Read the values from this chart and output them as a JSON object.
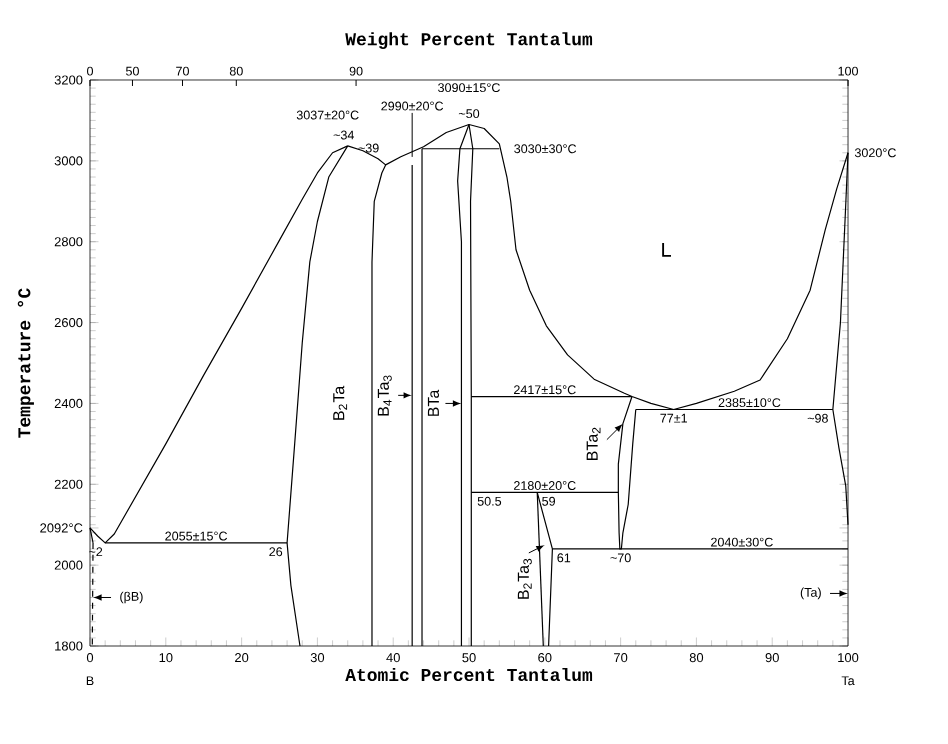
{
  "chart_data": {
    "type": "line",
    "xlabel": "Atomic Percent Tantalum",
    "ylabel": "Temperature °C",
    "x2label": "Weight Percent Tantalum",
    "xlim": [
      0,
      100
    ],
    "xticks": [
      0,
      10,
      20,
      30,
      40,
      50,
      60,
      70,
      80,
      90,
      100
    ],
    "ylim": [
      1800,
      3200
    ],
    "yticks": [
      1800,
      2000,
      {
        "value": 2092,
        "label": "2092°C"
      },
      2200,
      2400,
      2600,
      2800,
      3000,
      3200
    ],
    "marker": "none",
    "line_style": "solid",
    "series": [
      {
        "color": "#000000",
        "x": [
          0,
          1,
          2,
          3.2,
          10,
          15,
          20,
          25,
          28,
          30,
          32,
          34
        ],
        "values": [
          2092,
          2072,
          2055,
          2077,
          2300,
          2470,
          2635,
          2804,
          2905,
          2970,
          3020,
          3037
        ]
      },
      {
        "color": "#000000",
        "x": [
          34,
          36,
          38,
          39,
          41,
          44,
          47,
          50
        ],
        "values": [
          3037,
          3025,
          3005,
          2990,
          3010,
          3035,
          3070,
          3090
        ]
      },
      {
        "color": "#000000",
        "x": [
          50,
          52,
          54,
          55,
          55.5,
          56.2,
          58,
          60.2,
          63,
          66.5,
          70.5,
          71.5,
          74,
          77
        ],
        "values": [
          3090,
          3080,
          3042,
          2960,
          2900,
          2780,
          2680,
          2592,
          2520,
          2460,
          2425,
          2417,
          2400,
          2385
        ]
      },
      {
        "color": "#000000",
        "x": [
          77,
          80,
          85,
          88.4,
          92,
          95,
          97,
          98.5,
          100
        ],
        "values": [
          2385,
          2400,
          2430,
          2458,
          2560,
          2680,
          2830,
          2930,
          3020
        ]
      },
      {
        "color": "#000000",
        "x": [
          100,
          99.7,
          98.8,
          98,
          99,
          99.6,
          100
        ],
        "values": [
          2100,
          2196,
          2290,
          2385,
          2600,
          2850,
          3020
        ]
      },
      {
        "color": "#000000",
        "x": [
          0,
          0.4
        ],
        "values": [
          2092,
          2055
        ]
      },
      {
        "color": "#000000",
        "line_style": "dashed",
        "x": [
          0.4,
          0.3
        ],
        "values": [
          2055,
          1800
        ]
      },
      {
        "color": "#000000",
        "x": [
          27.7,
          26.5,
          26,
          27,
          28,
          29,
          30,
          31.5,
          34
        ],
        "values": [
          1800,
          1950,
          2055,
          2300,
          2550,
          2750,
          2850,
          2960,
          3037
        ]
      },
      {
        "color": "#000000",
        "x": [
          37.2,
          37.2,
          37.5,
          38.5,
          39
        ],
        "values": [
          1800,
          2750,
          2900,
          2970,
          2990
        ]
      },
      {
        "color": "#000000",
        "x": [
          42.5,
          42.5
        ],
        "values": [
          1800,
          2990
        ]
      },
      {
        "color": "#000000",
        "x": [
          43.8,
          43.8
        ],
        "values": [
          1800,
          3030
        ]
      },
      {
        "color": "#000000",
        "x": [
          49,
          49,
          48.5,
          48.8,
          50
        ],
        "values": [
          1800,
          2800,
          2950,
          3030,
          3090
        ]
      },
      {
        "color": "#000000",
        "x": [
          50.3,
          50.3,
          50.2,
          50.5,
          50
        ],
        "values": [
          1800,
          2417,
          2900,
          3030,
          3090
        ]
      },
      {
        "color": "#000000",
        "x": [
          59,
          59.8
        ],
        "values": [
          2180,
          1800
        ]
      },
      {
        "color": "#000000",
        "x": [
          59,
          61,
          60.5
        ],
        "values": [
          2180,
          2040,
          1800
        ]
      },
      {
        "color": "#000000",
        "x": [
          71.5,
          70.3,
          69.7,
          69.7,
          69.8,
          69.9,
          70.1,
          70.3,
          71,
          71.6,
          72
        ],
        "values": [
          2417,
          2350,
          2250,
          2180,
          2080,
          2040,
          2040,
          2080,
          2150,
          2300,
          2385
        ]
      },
      {
        "color": "#000000",
        "x": [
          2,
          26
        ],
        "values": [
          2055,
          2055
        ]
      },
      {
        "color": "#000000",
        "x": [
          50.3,
          71.5
        ],
        "values": [
          2417,
          2417
        ]
      },
      {
        "color": "#000000",
        "x": [
          72,
          98
        ],
        "values": [
          2385,
          2385
        ]
      },
      {
        "color": "#000000",
        "x": [
          50.3,
          69.7
        ],
        "values": [
          2180,
          2180
        ]
      },
      {
        "color": "#000000",
        "x": [
          61,
          100
        ],
        "values": [
          2040,
          2040
        ]
      },
      {
        "color": "#000000",
        "x": [
          43.8,
          54
        ],
        "values": [
          3030,
          3030
        ]
      }
    ],
    "annotations": [
      "L",
      {
        "text": "3037±20°C",
        "x": 34,
        "y": 3037
      },
      {
        "text": "~34",
        "x": 34,
        "y": 3037
      },
      {
        "text": "2990±20°C",
        "x": 42.5,
        "y": 2990
      },
      {
        "text": "~39",
        "x": 39,
        "y": 2990
      },
      {
        "text": "3090±15°C",
        "x": 50,
        "y": 3090
      },
      {
        "text": "~50",
        "x": 50,
        "y": 3090
      },
      {
        "text": "3030±30°C",
        "x": 54,
        "y": 3030
      },
      {
        "text": "3020°C",
        "x": 100,
        "y": 3020
      },
      {
        "text": "~2",
        "x": 2,
        "y": 2055
      },
      {
        "text": "2055±15°C",
        "x": 14,
        "y": 2055
      },
      {
        "text": "26",
        "x": 26,
        "y": 2055
      },
      {
        "text": "2417±15°C",
        "x": 60,
        "y": 2417
      },
      {
        "text": "2385±10°C",
        "x": 87,
        "y": 2385
      },
      {
        "text": "77±1",
        "x": 77,
        "y": 2385
      },
      {
        "text": "~98",
        "x": 98,
        "y": 2385
      },
      {
        "text": "2180±20°C",
        "x": 60,
        "y": 2180
      },
      {
        "text": "50.5",
        "x": 50.5,
        "y": 2180
      },
      {
        "text": "59",
        "x": 59,
        "y": 2180
      },
      {
        "text": "61",
        "x": 61,
        "y": 2040
      },
      {
        "text": "~70",
        "x": 70,
        "y": 2040
      },
      {
        "text": "2040±30°C",
        "x": 86,
        "y": 2040
      },
      "B$_{2}$Ta",
      {
        "text": "B$_{4}$Ta$_{3}$",
        "x": 42.5,
        "y": 2420
      },
      {
        "text": "BTa",
        "x": 49,
        "y": 2400
      },
      {
        "text": "BTa$_{2}$",
        "x": 70.3,
        "y": 2350
      },
      {
        "text": "B$_{2}$Ta$_{3}$",
        "x": 60,
        "y": 2050
      },
      {
        "text": "(βB)",
        "x": 0.4,
        "y": 1920
      },
      "(Ta)",
      "B",
      "Ta",
      "0",
      "50",
      "70",
      "80",
      "90",
      "100"
    ]
  }
}
